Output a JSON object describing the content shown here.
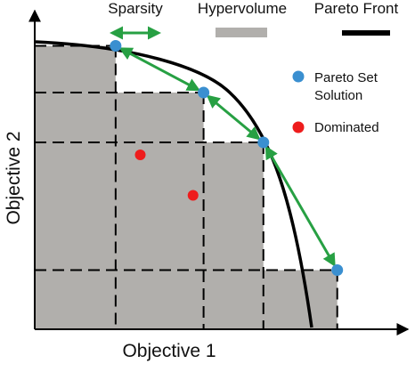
{
  "legend": {
    "sparsity": "Sparsity",
    "hypervolume": "Hypervolume",
    "pareto_front": "Pareto Front",
    "pareto_set_line1": "Pareto Set",
    "pareto_set_line2": "Solution",
    "dominated": "Dominated"
  },
  "axes": {
    "xlabel": "Objective 1",
    "ylabel": "Objective 2"
  },
  "colors": {
    "hypervolume": "#b1afac",
    "pareto_point": "#3a8fd0",
    "dominated_point": "#ee1c1c",
    "sparsity_arrow": "#27a043",
    "front": "#000000",
    "axis": "#000000"
  },
  "chart_data": {
    "type": "scatter",
    "xlabel": "Objective 1",
    "ylabel": "Objective 2",
    "pareto_set": [
      {
        "x": 0.23,
        "y": 0.91
      },
      {
        "x": 0.48,
        "y": 0.76
      },
      {
        "x": 0.65,
        "y": 0.6
      },
      {
        "x": 0.86,
        "y": 0.19
      }
    ],
    "dominated": [
      {
        "x": 0.3,
        "y": 0.56
      },
      {
        "x": 0.45,
        "y": 0.43
      }
    ]
  }
}
